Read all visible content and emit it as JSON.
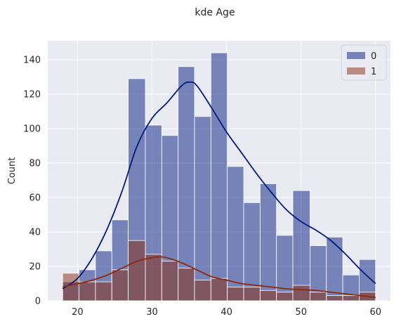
{
  "chart_data": {
    "type": "histogram",
    "title": "kde Age",
    "xlabel": "",
    "ylabel": "Count",
    "xlim": [
      16,
      62
    ],
    "ylim": [
      0,
      151
    ],
    "x_ticks": [
      20,
      30,
      40,
      50,
      60
    ],
    "y_ticks": [
      0,
      20,
      40,
      60,
      80,
      100,
      120,
      140
    ],
    "grid": true,
    "legend_position": "top-right",
    "bins": [
      [
        18.0,
        20.2
      ],
      [
        20.2,
        22.4
      ],
      [
        22.4,
        24.6
      ],
      [
        24.6,
        26.8
      ],
      [
        26.8,
        29.1
      ],
      [
        29.1,
        31.3
      ],
      [
        31.3,
        33.5
      ],
      [
        33.5,
        35.7
      ],
      [
        35.7,
        37.9
      ],
      [
        37.9,
        40.1
      ],
      [
        40.1,
        42.3
      ],
      [
        42.3,
        44.5
      ],
      [
        44.5,
        46.7
      ],
      [
        46.7,
        48.9
      ],
      [
        48.9,
        51.2
      ],
      [
        51.2,
        53.4
      ],
      [
        53.4,
        55.6
      ],
      [
        55.6,
        57.8
      ],
      [
        57.8,
        60.0
      ]
    ],
    "series": [
      {
        "name": "0",
        "color": "#001C7F",
        "values": [
          11,
          18,
          29,
          47,
          129,
          102,
          96,
          136,
          107,
          144,
          78,
          57,
          68,
          38,
          64,
          32,
          37,
          15,
          24
        ],
        "kde": [
          [
            18,
            7
          ],
          [
            20,
            13
          ],
          [
            22,
            25
          ],
          [
            24,
            42
          ],
          [
            26,
            64
          ],
          [
            28,
            90
          ],
          [
            30,
            106
          ],
          [
            32,
            115
          ],
          [
            34,
            125
          ],
          [
            35,
            127
          ],
          [
            36,
            125
          ],
          [
            38,
            112
          ],
          [
            40,
            98
          ],
          [
            42,
            86
          ],
          [
            44,
            74
          ],
          [
            46,
            63
          ],
          [
            48,
            53
          ],
          [
            50,
            46
          ],
          [
            52,
            41
          ],
          [
            54,
            35
          ],
          [
            56,
            27
          ],
          [
            58,
            18
          ],
          [
            60,
            10
          ]
        ]
      },
      {
        "name": "1",
        "color": "#8C2A0E",
        "values": [
          16,
          11,
          11,
          18,
          35,
          27,
          23,
          19,
          12,
          13,
          8,
          8,
          6,
          5,
          9,
          5,
          3,
          3,
          5
        ],
        "kde": [
          [
            18,
            8
          ],
          [
            20,
            10
          ],
          [
            22,
            12
          ],
          [
            24,
            15
          ],
          [
            26,
            19
          ],
          [
            28,
            23
          ],
          [
            30,
            25
          ],
          [
            31,
            25.5
          ],
          [
            32,
            25
          ],
          [
            34,
            22
          ],
          [
            36,
            18
          ],
          [
            38,
            14
          ],
          [
            40,
            12
          ],
          [
            42,
            10
          ],
          [
            44,
            9
          ],
          [
            46,
            8
          ],
          [
            48,
            7
          ],
          [
            50,
            6.5
          ],
          [
            52,
            6
          ],
          [
            54,
            5
          ],
          [
            56,
            4
          ],
          [
            58,
            3
          ],
          [
            60,
            2
          ]
        ]
      }
    ]
  }
}
